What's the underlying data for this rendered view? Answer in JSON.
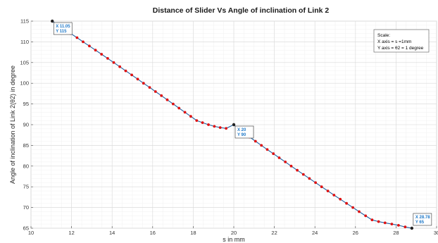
{
  "chart_data": {
    "type": "line",
    "title": "Distance of Slider Vs Angle of inclination of Link 2",
    "xlabel": "s in mm",
    "ylabel": "Angle of inclination of Link 2(θ2) in degree",
    "xlim": [
      10,
      30
    ],
    "ylim": [
      65,
      115
    ],
    "x_ticks": [
      "10",
      "12",
      "14",
      "16",
      "18",
      "20",
      "22",
      "24",
      "26",
      "28",
      "30"
    ],
    "y_ticks": [
      "65",
      "70",
      "75",
      "80",
      "85",
      "90",
      "95",
      "100",
      "105",
      "110",
      "115"
    ],
    "grid": true,
    "series": [
      {
        "color": "#1f5fa0",
        "marker_color": "#e01010",
        "x": [
          11.05,
          11.34,
          11.65,
          11.96,
          12.27,
          12.57,
          12.88,
          13.18,
          13.48,
          13.78,
          14.08,
          14.38,
          14.67,
          14.97,
          15.26,
          15.55,
          15.85,
          16.14,
          16.43,
          16.72,
          17.01,
          17.3,
          17.59,
          17.88,
          18.17,
          18.46,
          18.75,
          19.04,
          19.33,
          19.62,
          20.0,
          20.2,
          20.49,
          20.78,
          21.07,
          21.36,
          21.65,
          21.95,
          22.24,
          22.54,
          22.83,
          23.13,
          23.43,
          23.73,
          24.03,
          24.33,
          24.64,
          24.94,
          25.25,
          25.56,
          25.87,
          26.18,
          26.5,
          26.82,
          27.14,
          27.46,
          27.79,
          28.12,
          28.45,
          28.78
        ],
        "y": [
          115,
          114,
          113,
          112,
          111,
          110,
          109,
          108,
          107,
          106,
          105,
          104,
          103,
          102,
          101,
          100,
          99,
          98,
          97,
          96,
          95,
          94,
          93,
          92,
          91,
          90.5,
          90,
          89.6,
          89.3,
          89.1,
          90,
          89,
          88,
          87,
          86,
          85,
          84,
          83,
          82,
          81,
          80,
          79,
          78,
          77,
          76,
          75,
          74,
          73,
          72,
          71,
          70,
          69,
          68,
          67,
          66.6,
          66.3,
          66,
          65.7,
          65.3,
          65
        ]
      }
    ],
    "datatips": [
      {
        "x_label": "X 11.05",
        "y_label": "Y 115",
        "x": 11.05,
        "y": 115
      },
      {
        "x_label": "X 20",
        "y_label": "Y 90",
        "x": 20,
        "y": 90
      },
      {
        "x_label": "X 28.78",
        "y_label": "Y 65",
        "x": 28.78,
        "y": 65
      }
    ],
    "annotation": {
      "lines": [
        "Scale:",
        "X axis = s =1mm",
        "Y axis = θ2 = 1 degree"
      ],
      "placement": "top-right"
    }
  }
}
